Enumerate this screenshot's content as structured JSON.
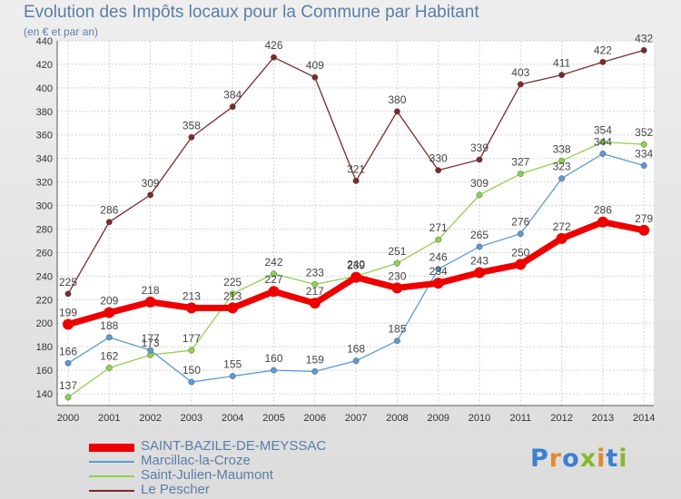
{
  "title": "Evolution des Impôts locaux pour la Commune par Habitant",
  "subtitle": "(en € et par an)",
  "logo": {
    "text": "Proxiti",
    "colors": [
      "#3a7fd0",
      "#e08a2c",
      "#3a7fd0",
      "#88b830",
      "#e08a2c",
      "#3a7fd0",
      "#88b830"
    ]
  },
  "chart_data": {
    "type": "line",
    "x": [
      "2000",
      "2001",
      "2002",
      "2003",
      "2004",
      "2005",
      "2006",
      "2007",
      "2008",
      "2009",
      "2010",
      "2011",
      "2012",
      "2013",
      "2014"
    ],
    "ylim": [
      130,
      440
    ],
    "yticks": [
      140,
      160,
      180,
      200,
      220,
      240,
      260,
      280,
      300,
      320,
      340,
      360,
      380,
      400,
      420,
      440
    ],
    "grid": true,
    "legend_position": "bottom-left",
    "series": [
      {
        "name": "SAINT-BAZILE-DE-MEYSSAC",
        "color": "#ee0000",
        "values": [
          199,
          209,
          218,
          213,
          213,
          227,
          217,
          239,
          230,
          234,
          243,
          250,
          272,
          286,
          279
        ],
        "labels": [
          "199",
          "209",
          "218",
          "213",
          "213",
          "227",
          "217",
          "239",
          "230",
          "234",
          "243",
          "250",
          "272",
          "286",
          "279"
        ]
      },
      {
        "name": "Marcillac-la-Croze",
        "color": "#5b9bd5",
        "values": [
          166,
          188,
          177,
          150,
          155,
          160,
          159,
          168,
          185,
          246,
          265,
          276,
          323,
          344,
          334
        ],
        "labels": [
          "166",
          "188",
          "177",
          "150",
          "155",
          "160",
          "159",
          "168",
          "185",
          "246",
          "265",
          "276",
          "323",
          "344",
          "334"
        ]
      },
      {
        "name": "Saint-Julien-Maumont",
        "color": "#8fd14f",
        "values": [
          137,
          162,
          173,
          177,
          225,
          242,
          233,
          240,
          251,
          271,
          309,
          327,
          338,
          354,
          352
        ],
        "labels": [
          "137",
          "162",
          "173",
          "177",
          "225",
          "242",
          "233",
          "240",
          "251",
          "271",
          "309",
          "327",
          "338",
          "354",
          "352"
        ]
      },
      {
        "name": "Le Pescher",
        "color": "#7a2a2a",
        "values": [
          225,
          286,
          309,
          358,
          384,
          426,
          409,
          321,
          380,
          330,
          339,
          403,
          411,
          422,
          432
        ],
        "labels": [
          "225",
          "286",
          "309",
          "358",
          "384",
          "426",
          "409",
          "321",
          "380",
          "330",
          "339",
          "403",
          "411",
          "422",
          "432"
        ]
      }
    ]
  }
}
